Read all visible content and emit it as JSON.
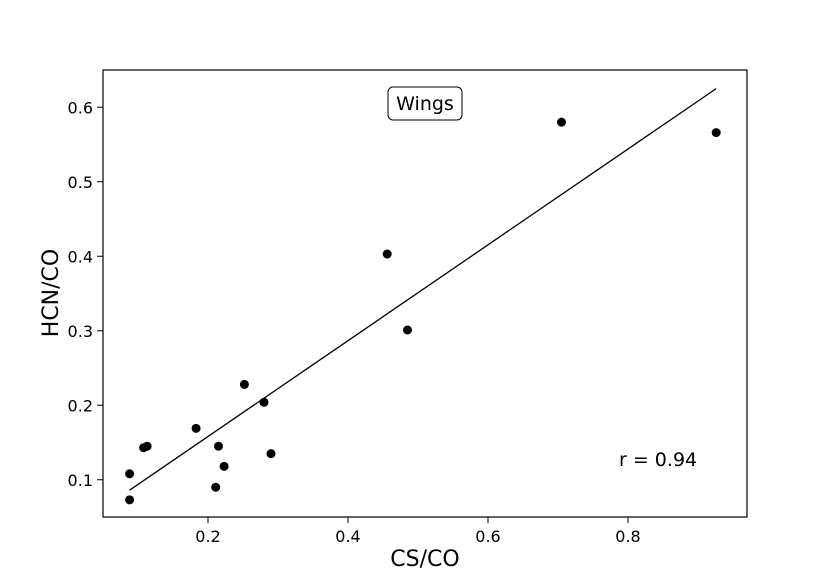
{
  "chart_data": {
    "type": "scatter",
    "title": "",
    "xlabel": "CS/CO",
    "ylabel": "HCN/CO",
    "xlim": [
      0.05,
      0.97
    ],
    "ylim": [
      0.05,
      0.65
    ],
    "xticks": [
      0.2,
      0.4,
      0.6,
      0.8
    ],
    "xtick_labels": [
      "0.2",
      "0.4",
      "0.6",
      "0.8"
    ],
    "yticks": [
      0.1,
      0.2,
      0.3,
      0.4,
      0.5,
      0.6
    ],
    "ytick_labels": [
      "0.1",
      "0.2",
      "0.3",
      "0.4",
      "0.5",
      "0.6"
    ],
    "grid": false,
    "panel_label": "Wings",
    "annotation": "r = 0.94",
    "marker_color": "#000000",
    "points": [
      {
        "x": 0.088,
        "y": 0.073
      },
      {
        "x": 0.088,
        "y": 0.108
      },
      {
        "x": 0.108,
        "y": 0.143
      },
      {
        "x": 0.113,
        "y": 0.145
      },
      {
        "x": 0.183,
        "y": 0.169
      },
      {
        "x": 0.211,
        "y": 0.09
      },
      {
        "x": 0.215,
        "y": 0.145
      },
      {
        "x": 0.223,
        "y": 0.118
      },
      {
        "x": 0.252,
        "y": 0.228
      },
      {
        "x": 0.28,
        "y": 0.204
      },
      {
        "x": 0.29,
        "y": 0.135
      },
      {
        "x": 0.456,
        "y": 0.403
      },
      {
        "x": 0.485,
        "y": 0.301
      },
      {
        "x": 0.705,
        "y": 0.58
      },
      {
        "x": 0.926,
        "y": 0.566
      }
    ],
    "fit_line": {
      "x": [
        0.088,
        0.926
      ],
      "y": [
        0.086,
        0.625
      ]
    }
  }
}
